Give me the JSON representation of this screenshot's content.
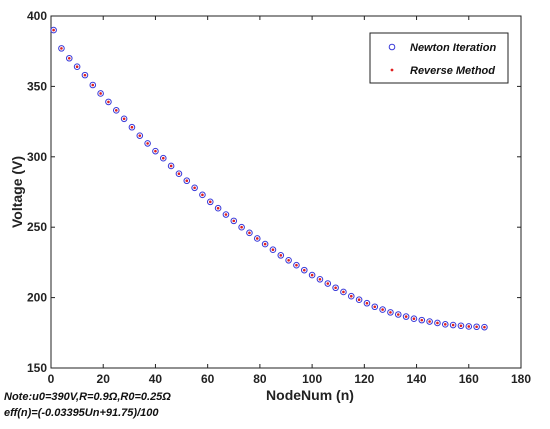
{
  "chart_data": {
    "type": "scatter",
    "xlabel": "NodeNum (n)",
    "ylabel": "Voltage (V)",
    "xlim": [
      0,
      180
    ],
    "ylim": [
      150,
      400
    ],
    "xticks": [
      0,
      20,
      40,
      60,
      80,
      100,
      120,
      140,
      160,
      180
    ],
    "yticks": [
      150,
      200,
      250,
      300,
      350,
      400
    ],
    "legend_position": "top-right",
    "x": [
      1,
      4,
      7,
      10,
      13,
      16,
      19,
      22,
      25,
      28,
      31,
      34,
      37,
      40,
      43,
      46,
      49,
      52,
      55,
      58,
      61,
      64,
      67,
      70,
      73,
      76,
      79,
      82,
      85,
      88,
      91,
      94,
      97,
      100,
      103,
      106,
      109,
      112,
      115,
      118,
      121,
      124,
      127,
      130,
      133,
      136,
      139,
      142,
      145,
      148,
      151,
      154,
      157,
      160,
      163,
      166
    ],
    "series": [
      {
        "name": "Newton Iteration",
        "color": "#3a3ad8",
        "marker": "circle",
        "values": [
          390,
          377,
          370,
          364,
          358,
          351,
          345,
          339,
          333,
          327,
          321,
          315,
          309.5,
          304,
          299,
          293.5,
          288,
          283,
          278,
          273,
          268,
          263.5,
          259,
          254.5,
          250,
          246,
          242,
          238,
          234,
          230,
          226.5,
          223,
          219.5,
          216,
          213,
          210,
          207,
          204,
          201,
          198.5,
          196,
          193.5,
          191.5,
          189.5,
          188,
          186.5,
          185,
          184,
          183,
          182,
          181,
          180.5,
          180,
          179.5,
          179.3,
          179
        ]
      },
      {
        "name": "Reverse Method",
        "color": "#e02020",
        "marker": "dot",
        "values": [
          390,
          377,
          370,
          364,
          358,
          351,
          345,
          339,
          333,
          327,
          321,
          315,
          309.5,
          304,
          299,
          293.5,
          288,
          283,
          278,
          273,
          268,
          263.5,
          259,
          254.5,
          250,
          246,
          242,
          238,
          234,
          230,
          226.5,
          223,
          219.5,
          216,
          213,
          210,
          207,
          204,
          201,
          198.5,
          196,
          193.5,
          191.5,
          189.5,
          188,
          186.5,
          185,
          184,
          183,
          182,
          181,
          180.5,
          180,
          179.5,
          179.3,
          179
        ]
      }
    ],
    "annotations": [
      "Note:u0=390V,R=0.9Ω,R0=0.25Ω",
      "eff(n)=(-0.03395Un+91.75)/100"
    ]
  }
}
